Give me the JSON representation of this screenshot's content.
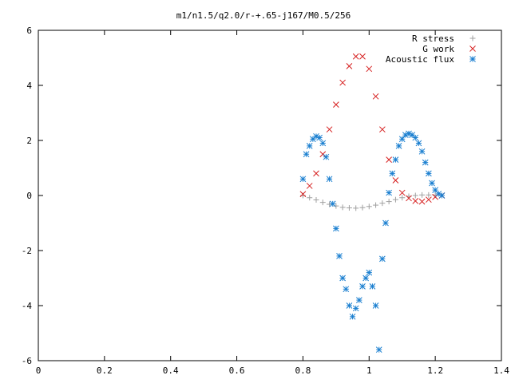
{
  "chart_data": {
    "type": "scatter",
    "title": "m1/n1.5/q2.0/r-+.65-j167/M0.5/256",
    "xlabel": "",
    "ylabel": "",
    "xlim": [
      0,
      1.4
    ],
    "ylim": [
      -6,
      6
    ],
    "xticks": [
      "0",
      "0.2",
      "0.4",
      "0.6",
      "0.8",
      "1",
      "1.2",
      "1.4"
    ],
    "yticks": [
      "-6",
      "-4",
      "-2",
      "0",
      "2",
      "4",
      "6"
    ],
    "grid": false,
    "legend_position": "top-right",
    "series": [
      {
        "name": "R stress",
        "marker": "plus",
        "color": "#a0a0a0",
        "x": [
          0.8,
          0.82,
          0.84,
          0.86,
          0.88,
          0.9,
          0.92,
          0.94,
          0.96,
          0.98,
          1.0,
          1.02,
          1.04,
          1.06,
          1.08,
          1.1,
          1.12,
          1.14,
          1.16,
          1.18,
          1.2,
          1.22
        ],
        "y": [
          0.0,
          -0.08,
          -0.16,
          -0.25,
          -0.32,
          -0.38,
          -0.43,
          -0.45,
          -0.46,
          -0.44,
          -0.4,
          -0.35,
          -0.28,
          -0.22,
          -0.15,
          -0.08,
          -0.03,
          0.0,
          0.02,
          0.02,
          0.01,
          0.0
        ]
      },
      {
        "name": "G work",
        "marker": "cross",
        "color": "#d62020",
        "x": [
          0.8,
          0.82,
          0.84,
          0.86,
          0.88,
          0.9,
          0.92,
          0.94,
          0.96,
          0.98,
          1.0,
          1.02,
          1.04,
          1.06,
          1.08,
          1.1,
          1.12,
          1.14,
          1.16,
          1.18,
          1.2,
          1.22
        ],
        "y": [
          0.05,
          0.35,
          0.8,
          1.5,
          2.4,
          3.3,
          4.1,
          4.7,
          5.05,
          5.05,
          4.6,
          3.6,
          2.4,
          1.3,
          0.55,
          0.1,
          -0.1,
          -0.2,
          -0.22,
          -0.15,
          -0.05,
          0.0
        ]
      },
      {
        "name": "Acoustic flux",
        "marker": "star",
        "color": "#1a7fd0",
        "x": [
          0.8,
          0.81,
          0.82,
          0.83,
          0.84,
          0.85,
          0.86,
          0.87,
          0.88,
          0.89,
          0.9,
          0.91,
          0.92,
          0.93,
          0.94,
          0.95,
          0.96,
          0.97,
          0.98,
          0.99,
          1.0,
          1.01,
          1.02,
          1.03,
          1.04,
          1.05,
          1.06,
          1.07,
          1.08,
          1.09,
          1.1,
          1.11,
          1.12,
          1.13,
          1.14,
          1.15,
          1.16,
          1.17,
          1.18,
          1.19,
          1.2,
          1.21,
          1.22
        ],
        "y": [
          0.6,
          1.5,
          1.8,
          2.05,
          2.15,
          2.1,
          1.9,
          1.4,
          0.6,
          -0.3,
          -1.2,
          -2.2,
          -3.0,
          -3.4,
          -4.0,
          -4.4,
          -4.1,
          -3.8,
          -3.3,
          -3.0,
          -2.8,
          -3.3,
          -4.0,
          -5.6,
          -2.3,
          -1.0,
          0.1,
          0.8,
          1.3,
          1.8,
          2.05,
          2.2,
          2.25,
          2.2,
          2.1,
          1.9,
          1.6,
          1.2,
          0.8,
          0.45,
          0.2,
          0.06,
          0.0
        ]
      }
    ]
  }
}
